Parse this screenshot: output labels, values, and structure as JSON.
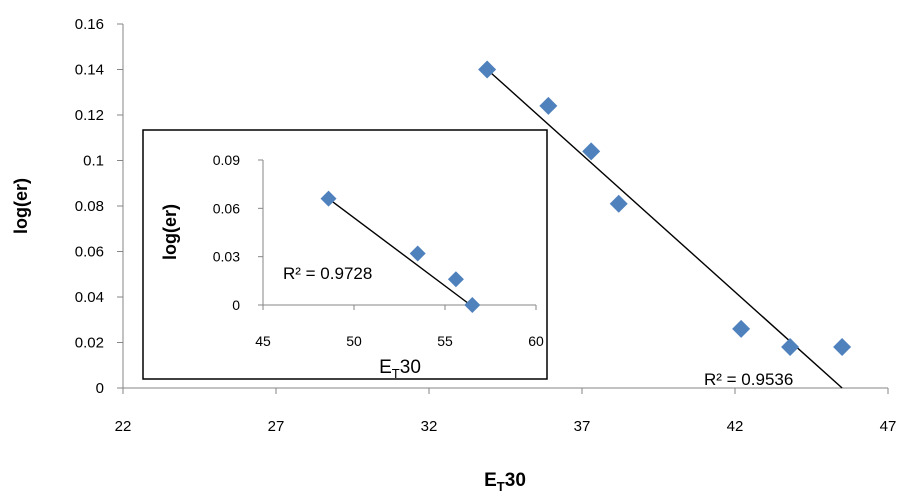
{
  "chart_data": [
    {
      "type": "scatter",
      "role": "main",
      "xlabel": "E",
      "xlabel_sub": "T",
      "xlabel_tail": "30",
      "ylabel": "log(er)",
      "xlim": [
        22,
        47
      ],
      "ylim": [
        0,
        0.16
      ],
      "x_ticks": [
        22,
        27,
        32,
        37,
        42,
        47
      ],
      "y_ticks": [
        0,
        0.02,
        0.04,
        0.06,
        0.08,
        0.1,
        0.12,
        0.14,
        0.16
      ],
      "x_tick_labels": [
        "22",
        "27",
        "32",
        "37",
        "42",
        "47"
      ],
      "y_tick_labels": [
        "0",
        "0.02",
        "0.04",
        "0.06",
        "0.08",
        "0.1",
        "0.12",
        "0.14",
        "0.16"
      ],
      "series": [
        {
          "marker": "diamond",
          "color": "#4F81BD",
          "x": [
            33.9,
            35.9,
            37.3,
            38.2,
            42.2,
            43.8,
            45.5
          ],
          "y": [
            0.14,
            0.124,
            0.104,
            0.081,
            0.026,
            0.018,
            0.018
          ]
        }
      ],
      "trendline": {
        "x": [
          33.9,
          45.5
        ],
        "y": [
          0.14,
          0.0
        ],
        "color": "#000000"
      },
      "annotation": "R² = 0.9536",
      "grid": false
    },
    {
      "type": "scatter",
      "role": "inset",
      "xlabel": "E",
      "xlabel_sub": "T",
      "xlabel_tail": "30",
      "ylabel": "log(er)",
      "xlim": [
        45,
        60
      ],
      "ylim": [
        0,
        0.09
      ],
      "x_ticks": [
        45,
        50,
        55,
        60
      ],
      "y_ticks": [
        0,
        0.03,
        0.06,
        0.09
      ],
      "x_tick_labels": [
        "45",
        "50",
        "55",
        "60"
      ],
      "y_tick_labels": [
        "0",
        "0.03",
        "0.06",
        "0.09"
      ],
      "series": [
        {
          "marker": "diamond",
          "color": "#4F81BD",
          "x": [
            48.6,
            53.5,
            55.6,
            56.5
          ],
          "y": [
            0.066,
            0.032,
            0.016,
            0.0
          ]
        }
      ],
      "trendline": {
        "x": [
          48.6,
          56.4
        ],
        "y": [
          0.066,
          0.0
        ],
        "color": "#000000"
      },
      "annotation": "R² = 0.9728",
      "grid": false
    }
  ]
}
